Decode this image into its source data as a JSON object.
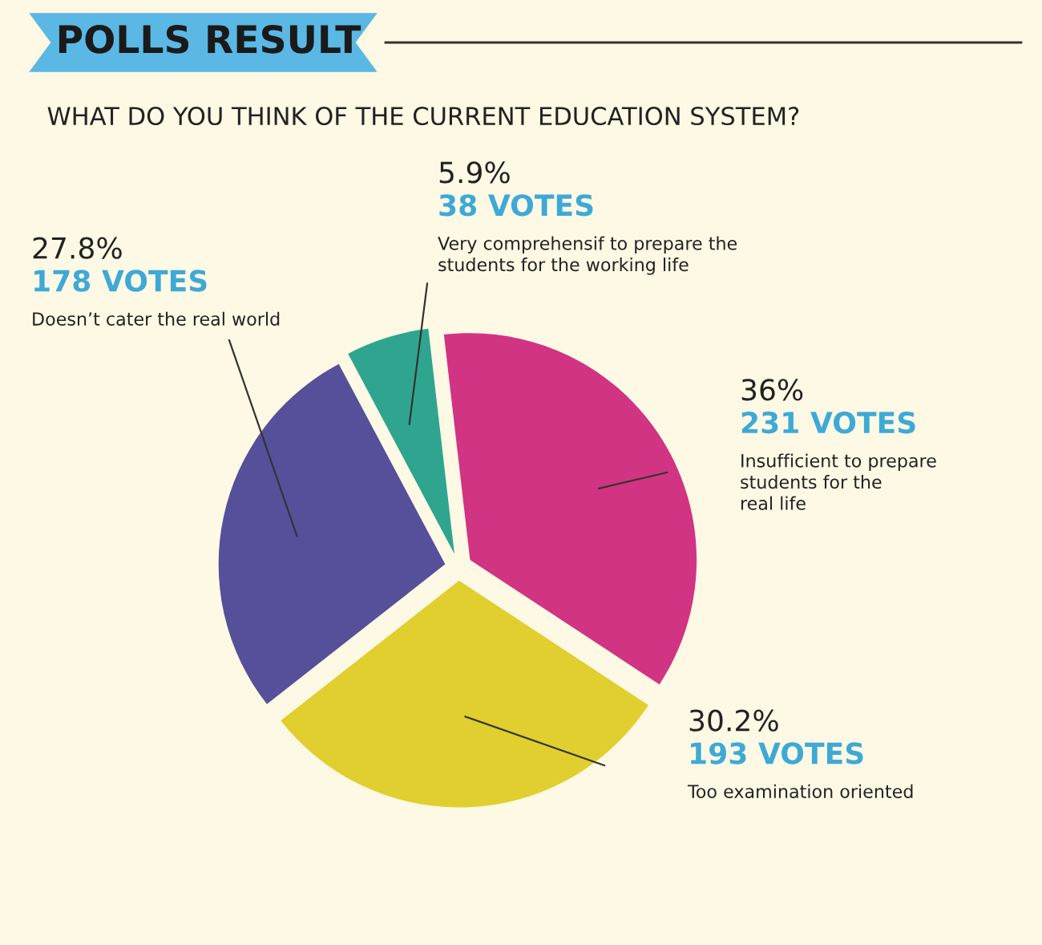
{
  "chart_data": {
    "type": "pie",
    "title": "POLLS RESULT",
    "subtitle": "WHAT DO YOU THINK OF THE CURRENT EDUCATION SYSTEM?",
    "categories": [
      "Very comprehensif to prepare the\nstudents for the working life",
      "Insufficient to prepare\nstudents for the\nreal life",
      "Too examination oriented",
      "Doesn’t cater the real world"
    ],
    "values": [
      38,
      231,
      193,
      178
    ],
    "value_labels": [
      "5.9%\n38 VOTES",
      "36%\n231 VOTES",
      "30.2%\n193 VOTES",
      "27.8%\n178 VOTES"
    ],
    "colors": [
      "#2fa58f",
      "#d13482",
      "#e0cf2e",
      "#56509a"
    ],
    "legend": false
  }
}
